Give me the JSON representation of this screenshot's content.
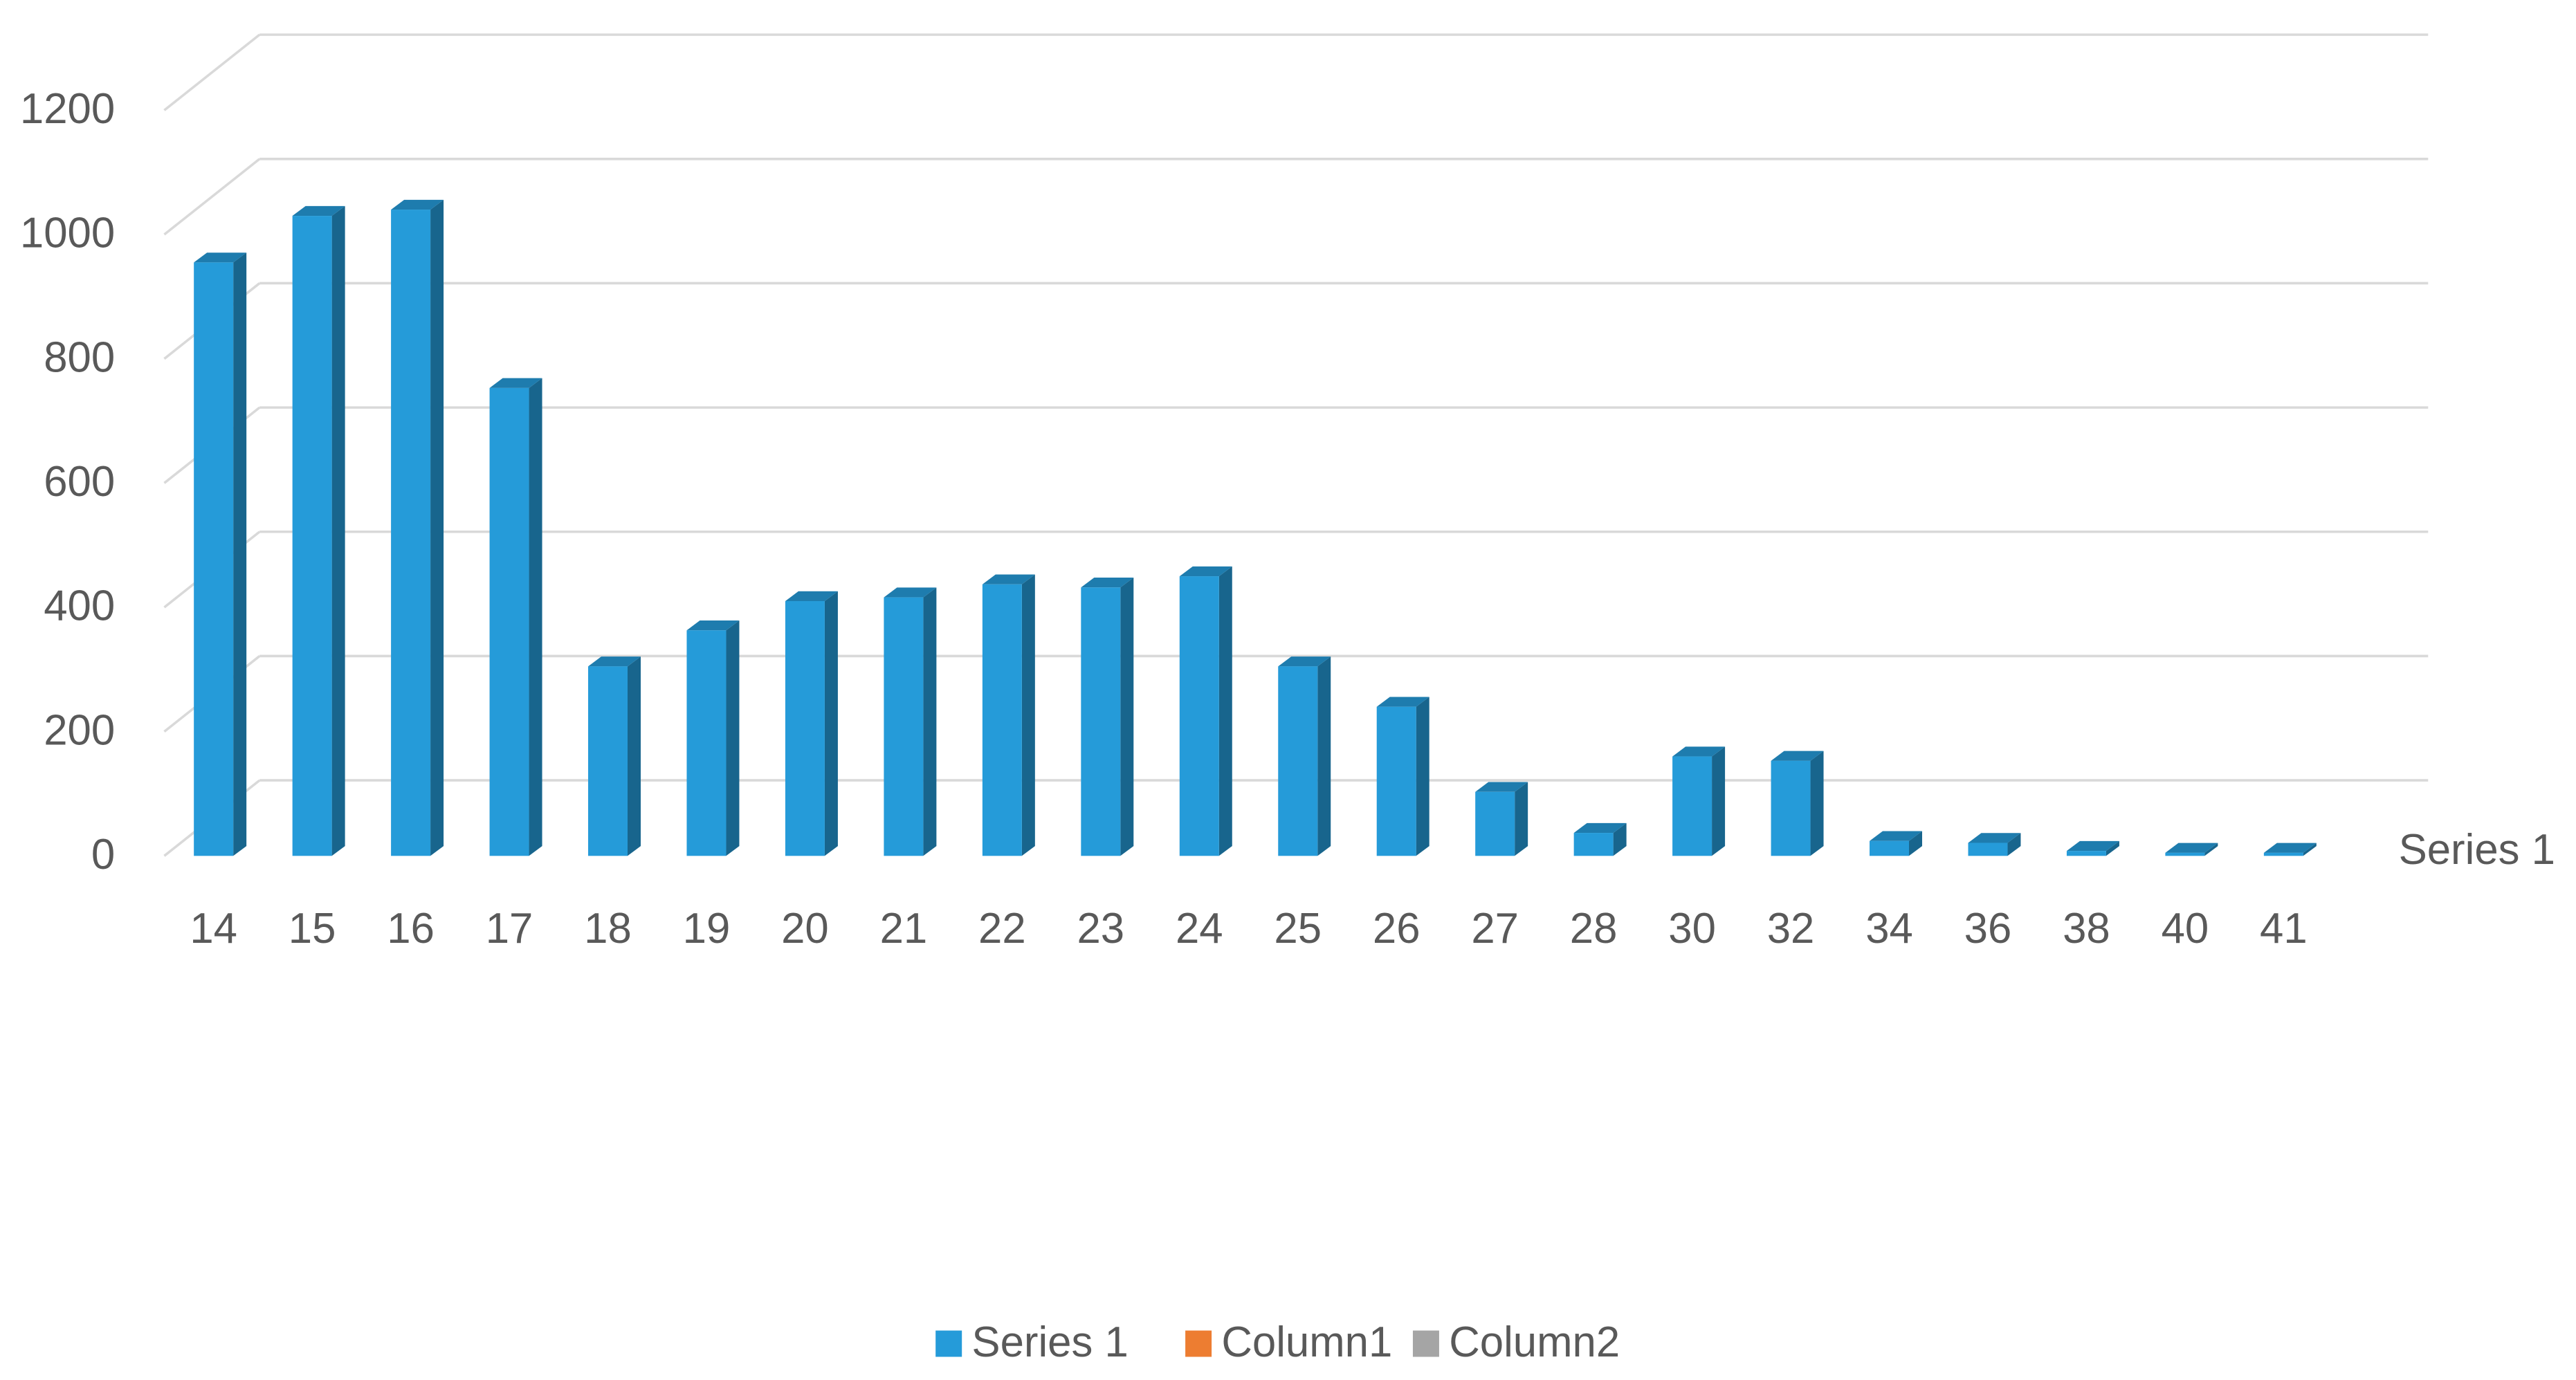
{
  "chart_data": {
    "type": "bar3d",
    "categories": [
      "14",
      "15",
      "16",
      "17",
      "18",
      "19",
      "20",
      "21",
      "22",
      "23",
      "24",
      "25",
      "26",
      "27",
      "28",
      "30",
      "32",
      "34",
      "36",
      "38",
      "40",
      "41"
    ],
    "series": [
      {
        "name": "Series 1",
        "color": "#259bd9",
        "values": [
          955,
          1030,
          1040,
          753,
          305,
          363,
          410,
          416,
          437,
          432,
          450,
          305,
          240,
          103,
          37,
          160,
          153,
          24,
          21,
          8,
          5,
          5
        ]
      },
      {
        "name": "Column1",
        "color": "#ed7d31",
        "values": [
          null,
          null,
          null,
          null,
          null,
          null,
          null,
          null,
          null,
          null,
          null,
          null,
          null,
          null,
          null,
          null,
          null,
          null,
          null,
          null,
          null,
          null
        ]
      },
      {
        "name": "Column2",
        "color": "#a5a5a5",
        "values": [
          null,
          null,
          null,
          null,
          null,
          null,
          null,
          null,
          null,
          null,
          null,
          null,
          null,
          null,
          null,
          null,
          null,
          null,
          null,
          null,
          null,
          null
        ]
      }
    ],
    "ylim": [
      0,
      1200
    ],
    "yticks": [
      0,
      200,
      400,
      600,
      800,
      1000,
      1200
    ],
    "grid": true,
    "legend": "bottom"
  }
}
